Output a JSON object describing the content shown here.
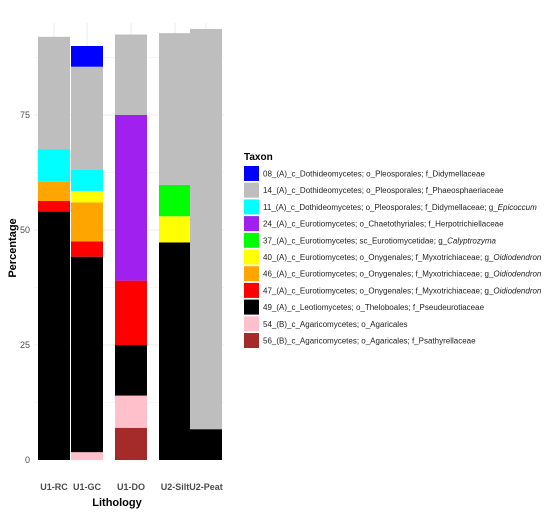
{
  "chart_data": {
    "type": "bar",
    "stacked": true,
    "categories": [
      "U1-RC",
      "U1-GC",
      "U1-DO",
      "U2-Silt",
      "U2-Peat"
    ],
    "xlabel": "Lithology",
    "ylabel": "Percentage",
    "ylim": [
      0,
      95
    ],
    "yticks": [
      0,
      25,
      50,
      75
    ],
    "grid": true,
    "legend": {
      "title": "Taxon",
      "placement": "right",
      "entries": [
        {
          "label": "08_(A)_c_Dothideomycetes; o_Pleosporales; f_Didymellaceae",
          "italic": "",
          "color": "#0000ff"
        },
        {
          "label": "14_(A)_c_Dothideomycetes; o_Pleosporales; f_Phaeosphaeriaceae",
          "italic": "",
          "color": "#bebebe"
        },
        {
          "label": "11_(A)_c_Dothideomycetes; o_Pleosporales; f_Didymellaceae; g_",
          "italic": "Epicoccum",
          "color": "#00ffff"
        },
        {
          "label": "24_(A)_c_Eurotiomycetes; o_Chaetothyriales; f_Herpotrichiellaceae",
          "italic": "",
          "color": "#a020f0"
        },
        {
          "label": "37_(A)_c_Eurotiomycetes; sc_Eurotiomycetidae; g_",
          "italic": "Calyptrozyma",
          "color": "#00ff00"
        },
        {
          "label": "40_(A)_c_Eurotiomycetes; o_Onygenales; f_Myxotrichiaceae; g_",
          "italic": "Oidiodendron",
          "color": "#ffff00"
        },
        {
          "label": "46_(A)_c_Eurotiomycetes; o_Onygenales; f_Myxotrichiaceae; g_",
          "italic": "Oidiodendron",
          "color": "#ffa500"
        },
        {
          "label": "47_(A)_c_Eurotiomycetes; o_Onygenales; f_Myxotrichiaceae; g_",
          "italic": "Oidiodendron",
          "color": "#ff0000"
        },
        {
          "label": "49_(A)_c_Leotiomycetes; o_Theloboales; f_Pseudeurotiaceae",
          "italic": "",
          "color": "#000000"
        },
        {
          "label": "54_(B)_c_Agaricomycetes; o_Agaricales",
          "italic": "",
          "color": "#ffc0cb"
        },
        {
          "label": "56_(B)_c_Agaricomycetes; o_Agaricales; f_Psathyrellaceae",
          "italic": "",
          "color": "#a52a2a"
        }
      ]
    },
    "stacks": [
      {
        "category": "U1-RC",
        "segments": [
          {
            "taxon": "49",
            "value": 54
          },
          {
            "taxon": "47",
            "value": 2.3
          },
          {
            "taxon": "46",
            "value": 4.2
          },
          {
            "taxon": "11",
            "value": 7
          },
          {
            "taxon": "14",
            "value": 24.5
          }
        ]
      },
      {
        "category": "U1-GC",
        "segments": [
          {
            "taxon": "54",
            "value": 1.7
          },
          {
            "taxon": "49",
            "value": 42.5
          },
          {
            "taxon": "47",
            "value": 3.3
          },
          {
            "taxon": "46",
            "value": 8.5
          },
          {
            "taxon": "40",
            "value": 2.5
          },
          {
            "taxon": "11",
            "value": 4.7
          },
          {
            "taxon": "14",
            "value": 22.3
          },
          {
            "taxon": "08",
            "value": 4.5
          }
        ]
      },
      {
        "category": "U1-DO",
        "segments": [
          {
            "taxon": "56",
            "value": 7
          },
          {
            "taxon": "54",
            "value": 7
          },
          {
            "taxon": "49",
            "value": 11
          },
          {
            "taxon": "47",
            "value": 14
          },
          {
            "taxon": "24",
            "value": 36
          },
          {
            "taxon": "14",
            "value": 17.5
          }
        ]
      },
      {
        "category": "U2-Silt",
        "segments": [
          {
            "taxon": "49",
            "value": 47.3
          },
          {
            "taxon": "40",
            "value": 5.7
          },
          {
            "taxon": "37",
            "value": 6.8
          },
          {
            "taxon": "14",
            "value": 33
          }
        ]
      },
      {
        "category": "U2-Peat",
        "segments": [
          {
            "taxon": "49",
            "value": 6.7
          },
          {
            "taxon": "14",
            "value": 87
          }
        ]
      }
    ]
  }
}
